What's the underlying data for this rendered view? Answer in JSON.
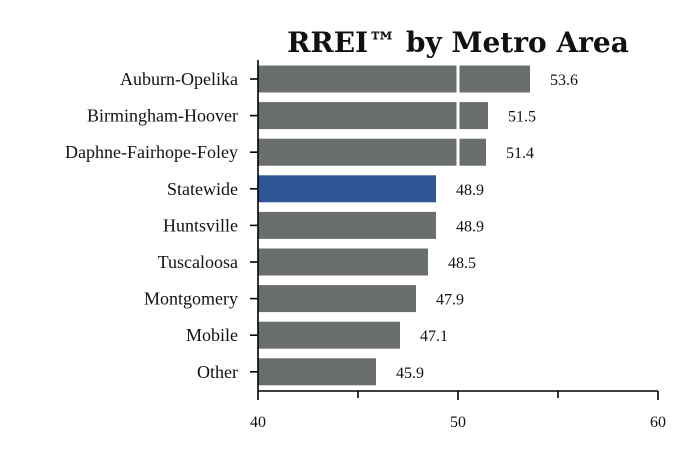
{
  "chart_data": {
    "type": "bar",
    "orientation": "horizontal",
    "title": "RREI™ by Metro Area",
    "xlabel": "",
    "ylabel": "",
    "categories": [
      "Auburn-Opelika",
      "Birmingham-Hoover",
      "Daphne-Fairhope-Foley",
      "Statewide",
      "Huntsville",
      "Tuscaloosa",
      "Montgomery",
      "Mobile",
      "Other"
    ],
    "values": [
      53.6,
      51.5,
      51.4,
      48.9,
      48.9,
      48.5,
      47.9,
      47.1,
      45.9
    ],
    "value_labels": [
      "53.6",
      "51.5",
      "51.4",
      "48.9",
      "48.9",
      "48.5",
      "47.9",
      "47.1",
      "45.9"
    ],
    "xlim": [
      40,
      60
    ],
    "xticks": [
      40,
      50,
      60
    ],
    "xtick_labels": [
      "40",
      "50",
      "60"
    ],
    "minor_xticks": [
      45,
      55
    ],
    "gridlines_x": [
      50
    ],
    "grid": "vertical white lines over bars",
    "legend": "none",
    "highlight_category": "Statewide",
    "colors": {
      "bar": "#6b6e6e",
      "highlight": "#2f5597",
      "gridline": "#ffffff",
      "axis": "#000000",
      "text": "#111111"
    }
  }
}
